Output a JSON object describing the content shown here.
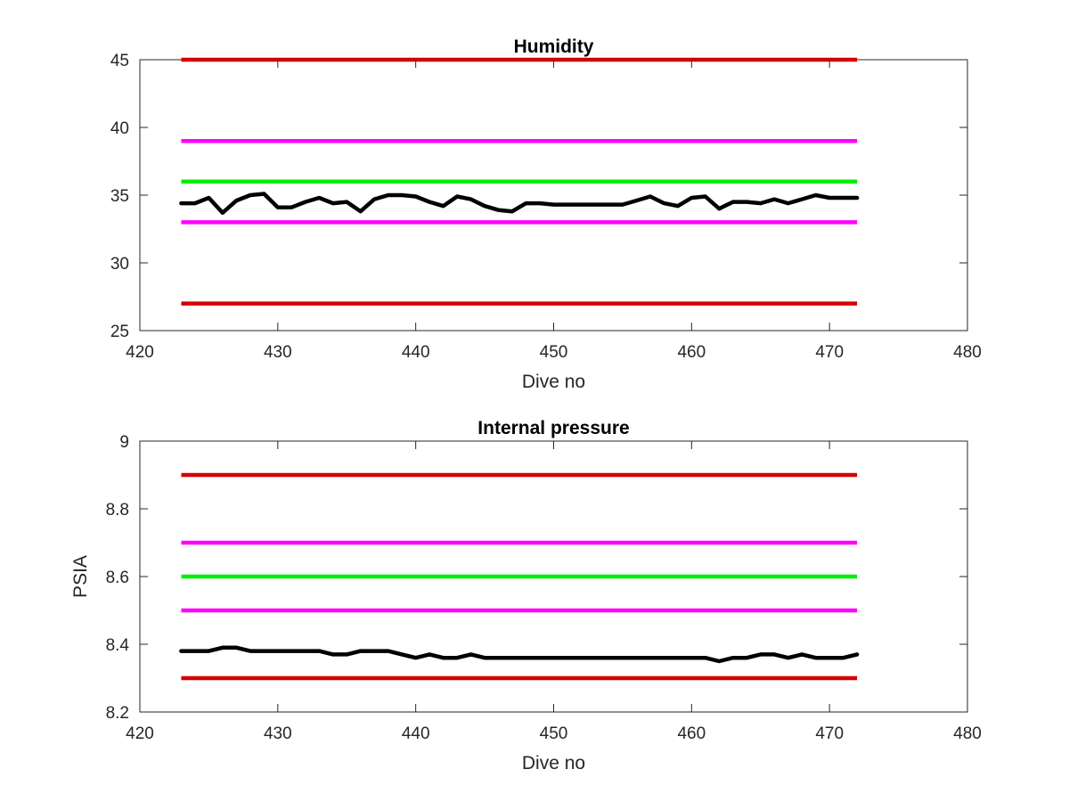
{
  "chart_data": [
    {
      "type": "line",
      "title": "Humidity",
      "xlabel": "Dive no",
      "ylabel": "",
      "xlim": [
        420,
        480
      ],
      "ylim": [
        25,
        45
      ],
      "xticks": [
        420,
        430,
        440,
        450,
        460,
        470,
        480
      ],
      "yticks": [
        25,
        30,
        35,
        40,
        45
      ],
      "grid": false,
      "thresholds": [
        {
          "value": 45,
          "x": [
            423,
            472
          ],
          "color": "#d40000"
        },
        {
          "value": 39,
          "x": [
            423,
            472
          ],
          "color": "#ff00ff"
        },
        {
          "value": 36,
          "x": [
            423,
            472
          ],
          "color": "#00ee00"
        },
        {
          "value": 33,
          "x": [
            423,
            472
          ],
          "color": "#ff00ff"
        },
        {
          "value": 27,
          "x": [
            423,
            472
          ],
          "color": "#d40000"
        }
      ],
      "series": [
        {
          "color": "#000000",
          "x": [
            423,
            424,
            425,
            426,
            427,
            428,
            429,
            430,
            431,
            432,
            433,
            434,
            435,
            436,
            437,
            438,
            439,
            440,
            441,
            442,
            443,
            444,
            445,
            446,
            447,
            448,
            449,
            450,
            451,
            452,
            453,
            454,
            455,
            456,
            457,
            458,
            459,
            460,
            461,
            462,
            463,
            464,
            465,
            466,
            467,
            468,
            469,
            470,
            471,
            472
          ],
          "y": [
            34.4,
            34.4,
            34.8,
            33.7,
            34.6,
            35.0,
            35.1,
            34.1,
            34.1,
            34.5,
            34.8,
            34.4,
            34.5,
            33.8,
            34.7,
            35.0,
            35.0,
            34.9,
            34.5,
            34.2,
            34.9,
            34.7,
            34.2,
            33.9,
            33.8,
            34.4,
            34.4,
            34.3,
            34.3,
            34.3,
            34.3,
            34.3,
            34.3,
            34.6,
            34.9,
            34.4,
            34.2,
            34.8,
            34.9,
            34.0,
            34.5,
            34.5,
            34.4,
            34.7,
            34.4,
            34.7,
            35.0,
            34.8,
            34.8,
            34.8
          ]
        }
      ]
    },
    {
      "type": "line",
      "title": "Internal pressure",
      "xlabel": "Dive no",
      "ylabel": "PSIA",
      "xlim": [
        420,
        480
      ],
      "ylim": [
        8.2,
        9
      ],
      "xticks": [
        420,
        430,
        440,
        450,
        460,
        470,
        480
      ],
      "yticks": [
        8.2,
        8.4,
        8.6,
        8.8,
        9
      ],
      "tick_labels_y": [
        "8.2",
        "8.4",
        "8.6",
        "8.8",
        "9"
      ],
      "grid": false,
      "thresholds": [
        {
          "value": 8.9,
          "x": [
            423,
            472
          ],
          "color": "#d40000"
        },
        {
          "value": 8.7,
          "x": [
            423,
            472
          ],
          "color": "#ff00ff"
        },
        {
          "value": 8.6,
          "x": [
            423,
            472
          ],
          "color": "#00ee00"
        },
        {
          "value": 8.5,
          "x": [
            423,
            472
          ],
          "color": "#ff00ff"
        },
        {
          "value": 8.3,
          "x": [
            423,
            472
          ],
          "color": "#d40000"
        }
      ],
      "series": [
        {
          "color": "#000000",
          "x": [
            423,
            424,
            425,
            426,
            427,
            428,
            429,
            430,
            431,
            432,
            433,
            434,
            435,
            436,
            437,
            438,
            439,
            440,
            441,
            442,
            443,
            444,
            445,
            446,
            447,
            448,
            449,
            450,
            451,
            452,
            453,
            454,
            455,
            456,
            457,
            458,
            459,
            460,
            461,
            462,
            463,
            464,
            465,
            466,
            467,
            468,
            469,
            470,
            471,
            472
          ],
          "y": [
            8.38,
            8.38,
            8.38,
            8.39,
            8.39,
            8.38,
            8.38,
            8.38,
            8.38,
            8.38,
            8.38,
            8.37,
            8.37,
            8.38,
            8.38,
            8.38,
            8.37,
            8.36,
            8.37,
            8.36,
            8.36,
            8.37,
            8.36,
            8.36,
            8.36,
            8.36,
            8.36,
            8.36,
            8.36,
            8.36,
            8.36,
            8.36,
            8.36,
            8.36,
            8.36,
            8.36,
            8.36,
            8.36,
            8.36,
            8.35,
            8.36,
            8.36,
            8.37,
            8.37,
            8.36,
            8.37,
            8.36,
            8.36,
            8.36,
            8.37
          ]
        }
      ]
    }
  ]
}
